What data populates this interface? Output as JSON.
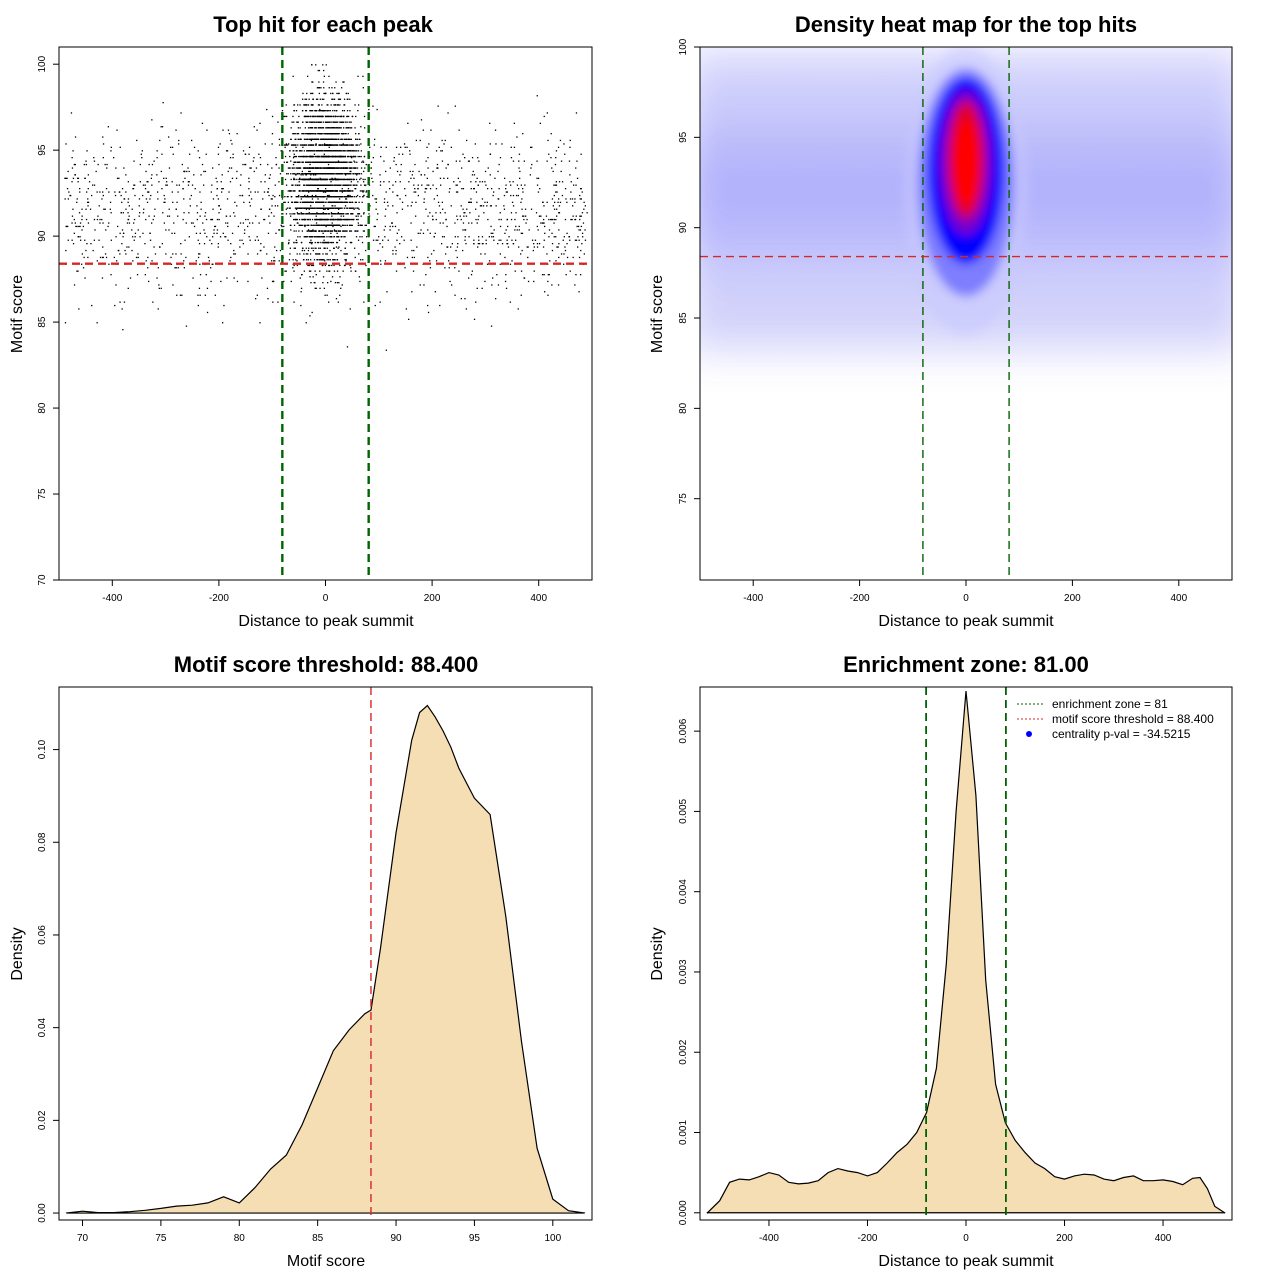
{
  "chart_data": [
    {
      "id": "scatter",
      "type": "scatter",
      "title": "Top hit for each peak",
      "xlabel": "Distance to peak summit",
      "ylabel": "Motif score",
      "xlim": [
        -500,
        500
      ],
      "ylim": [
        70,
        101
      ],
      "xticks": [
        -400,
        -200,
        0,
        200,
        400
      ],
      "yticks": [
        70,
        75,
        80,
        85,
        90,
        95,
        100
      ],
      "hlines": [
        {
          "y": 88.4,
          "color": "#d62728",
          "style": "dashed"
        }
      ],
      "vlines": [
        {
          "x": -81,
          "color": "#006400",
          "style": "dashed"
        },
        {
          "x": 81,
          "color": "#006400",
          "style": "dashed"
        }
      ],
      "point_color": "#000000",
      "distribution": {
        "n_points": 4800,
        "background": {
          "x_range": [
            -500,
            500
          ],
          "y_center": 91.5,
          "y_spread": 4.0
        },
        "central": {
          "x_center": 0,
          "x_spread": 45,
          "y_center": 93.5,
          "y_spread": 3.0
        }
      }
    },
    {
      "id": "heatmap",
      "type": "heatmap",
      "title": "Density heat map for the top hits",
      "xlabel": "Distance to peak summit",
      "ylabel": "Motif score",
      "xlim": [
        -500,
        500
      ],
      "ylim": [
        70.5,
        100
      ],
      "xticks": [
        -400,
        -200,
        0,
        200,
        400
      ],
      "yticks": [
        75,
        80,
        85,
        90,
        95,
        100
      ],
      "hlines": [
        {
          "y": 88.4,
          "color": "#d62728",
          "style": "dashed"
        }
      ],
      "vlines": [
        {
          "x": -81,
          "color": "#006400",
          "style": "dashed"
        },
        {
          "x": 81,
          "color": "#006400",
          "style": "dashed"
        }
      ],
      "color_scale": [
        "#ffffff",
        "#0000ff",
        "#ff0000"
      ],
      "hotspot": {
        "x": 0,
        "y_range": [
          87,
          98
        ],
        "peak_y": 93
      }
    },
    {
      "id": "score-density",
      "type": "area",
      "title": "Motif score threshold: 88.400",
      "xlabel": "Motif score",
      "ylabel": "Density",
      "xlim": [
        68.5,
        102.5
      ],
      "ylim": [
        -0.0015,
        0.1135
      ],
      "xticks": [
        70,
        75,
        80,
        85,
        90,
        95,
        100
      ],
      "yticks": [
        0.0,
        0.02,
        0.04,
        0.06,
        0.08,
        0.1
      ],
      "ytick_labels": [
        "0.00",
        "0.02",
        "0.04",
        "0.06",
        "0.08",
        "0.10"
      ],
      "fill": "#f5deb3",
      "vlines": [
        {
          "x": 88.4,
          "color": "#d62728",
          "style": "dashed"
        }
      ],
      "x": [
        69,
        70,
        71,
        72,
        73,
        74,
        75,
        76,
        77,
        78,
        79,
        80,
        81,
        82,
        83,
        84,
        85,
        86,
        87,
        88,
        88.4,
        89,
        90,
        91,
        91.5,
        92,
        92.5,
        93,
        93.5,
        94,
        95,
        96,
        97,
        98,
        99,
        100,
        101,
        102
      ],
      "y": [
        0.0,
        0.0004,
        0.0001,
        0.0001,
        0.0003,
        0.0006,
        0.001,
        0.0015,
        0.0017,
        0.0022,
        0.0035,
        0.0022,
        0.0055,
        0.0095,
        0.0125,
        0.019,
        0.027,
        0.035,
        0.0395,
        0.043,
        0.0438,
        0.057,
        0.082,
        0.102,
        0.108,
        0.1095,
        0.107,
        0.104,
        0.1005,
        0.096,
        0.0895,
        0.086,
        0.064,
        0.037,
        0.014,
        0.003,
        0.0005,
        0.0
      ]
    },
    {
      "id": "position-density",
      "type": "area",
      "title": "Enrichment zone: 81.00",
      "xlabel": "Distance to peak summit",
      "ylabel": "Density",
      "xlim": [
        -540,
        540
      ],
      "ylim": [
        -9e-05,
        0.00655
      ],
      "xticks": [
        -400,
        -200,
        0,
        200,
        400
      ],
      "yticks": [
        0.0,
        0.001,
        0.002,
        0.003,
        0.004,
        0.005,
        0.006
      ],
      "ytick_labels": [
        "0.000",
        "0.001",
        "0.002",
        "0.003",
        "0.004",
        "0.005",
        "0.006"
      ],
      "fill": "#f5deb3",
      "vlines": [
        {
          "x": -81,
          "color": "#006400",
          "style": "dashed"
        },
        {
          "x": 81,
          "color": "#006400",
          "style": "dashed"
        }
      ],
      "x": [
        -525,
        -500,
        -480,
        -460,
        -440,
        -420,
        -400,
        -380,
        -360,
        -340,
        -320,
        -300,
        -280,
        -260,
        -240,
        -220,
        -200,
        -180,
        -160,
        -140,
        -120,
        -100,
        -80,
        -60,
        -40,
        -20,
        0,
        20,
        40,
        60,
        80,
        100,
        120,
        140,
        160,
        180,
        200,
        220,
        240,
        260,
        280,
        300,
        320,
        340,
        360,
        380,
        400,
        420,
        440,
        460,
        475,
        490,
        505,
        525
      ],
      "y": [
        0.0,
        0.00015,
        0.00038,
        0.00042,
        0.00041,
        0.00045,
        0.0005,
        0.00047,
        0.00038,
        0.00036,
        0.00037,
        0.0004,
        0.0005,
        0.00055,
        0.00052,
        0.0005,
        0.00046,
        0.0005,
        0.00062,
        0.00075,
        0.00085,
        0.001,
        0.00125,
        0.0018,
        0.0031,
        0.005,
        0.0065,
        0.0052,
        0.0029,
        0.0016,
        0.00112,
        0.0009,
        0.00075,
        0.00062,
        0.00055,
        0.00045,
        0.00042,
        0.00046,
        0.00048,
        0.00047,
        0.00042,
        0.0004,
        0.00044,
        0.00046,
        0.0004,
        0.0004,
        0.00041,
        0.00039,
        0.00035,
        0.00043,
        0.00044,
        0.0003,
        8e-05,
        0.0
      ],
      "legend": {
        "position": "top-right",
        "entries": [
          {
            "label": "enrichment zone = 81",
            "color": "#006400",
            "marker": "dotted-line"
          },
          {
            "label": "motif score threshold = 88.400",
            "color": "#d62728",
            "marker": "dotted-line"
          },
          {
            "label": "centrality p-val = -34.5215",
            "color": "#0000ff",
            "marker": "dot"
          }
        ]
      }
    }
  ]
}
